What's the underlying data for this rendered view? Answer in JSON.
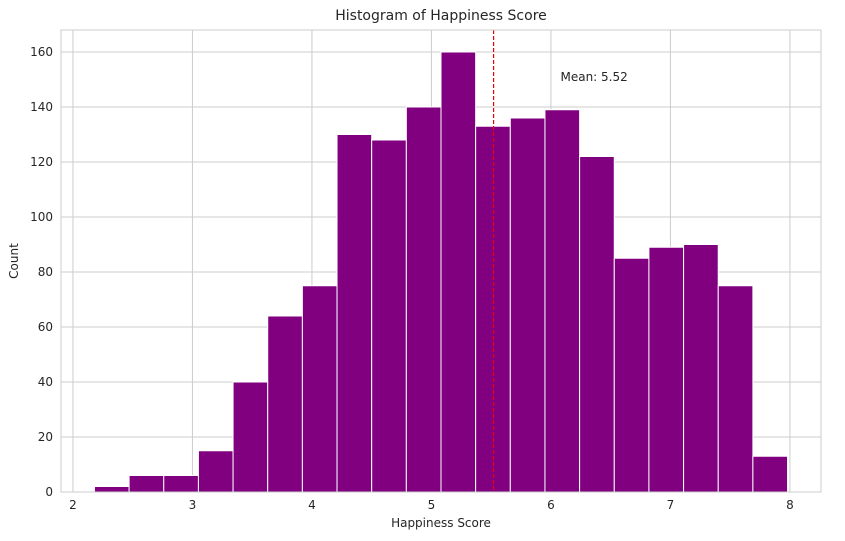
{
  "chart_data": {
    "type": "bar",
    "title": "Histogram of Happiness Score",
    "xlabel": "Happiness Score",
    "ylabel": "Count",
    "bin_edges": [
      2.18,
      2.47,
      2.76,
      3.05,
      3.34,
      3.63,
      3.92,
      4.21,
      4.5,
      4.79,
      5.08,
      5.37,
      5.66,
      5.95,
      6.24,
      6.53,
      6.82,
      7.11,
      7.4,
      7.69,
      7.98
    ],
    "values": [
      2,
      6,
      6,
      15,
      40,
      64,
      75,
      130,
      128,
      140,
      160,
      133,
      136,
      139,
      122,
      85,
      89,
      90,
      75,
      13
    ],
    "xlim": [
      1.9,
      8.26
    ],
    "ylim": [
      0,
      168
    ],
    "x_ticks": [
      "2",
      "3",
      "4",
      "5",
      "6",
      "7",
      "8"
    ],
    "y_ticks": [
      "0",
      "20",
      "40",
      "60",
      "80",
      "100",
      "120",
      "140",
      "160"
    ],
    "grid": true,
    "mean": {
      "value": 5.52,
      "label": "Mean: 5.52",
      "label_x": 6.08,
      "label_y": 151
    },
    "colors": {
      "bar": "#800080",
      "bar_edge": "#ffffff",
      "mean_line": "#e8000b",
      "grid": "#cccccc",
      "axes_edge": "#cccccc"
    }
  }
}
